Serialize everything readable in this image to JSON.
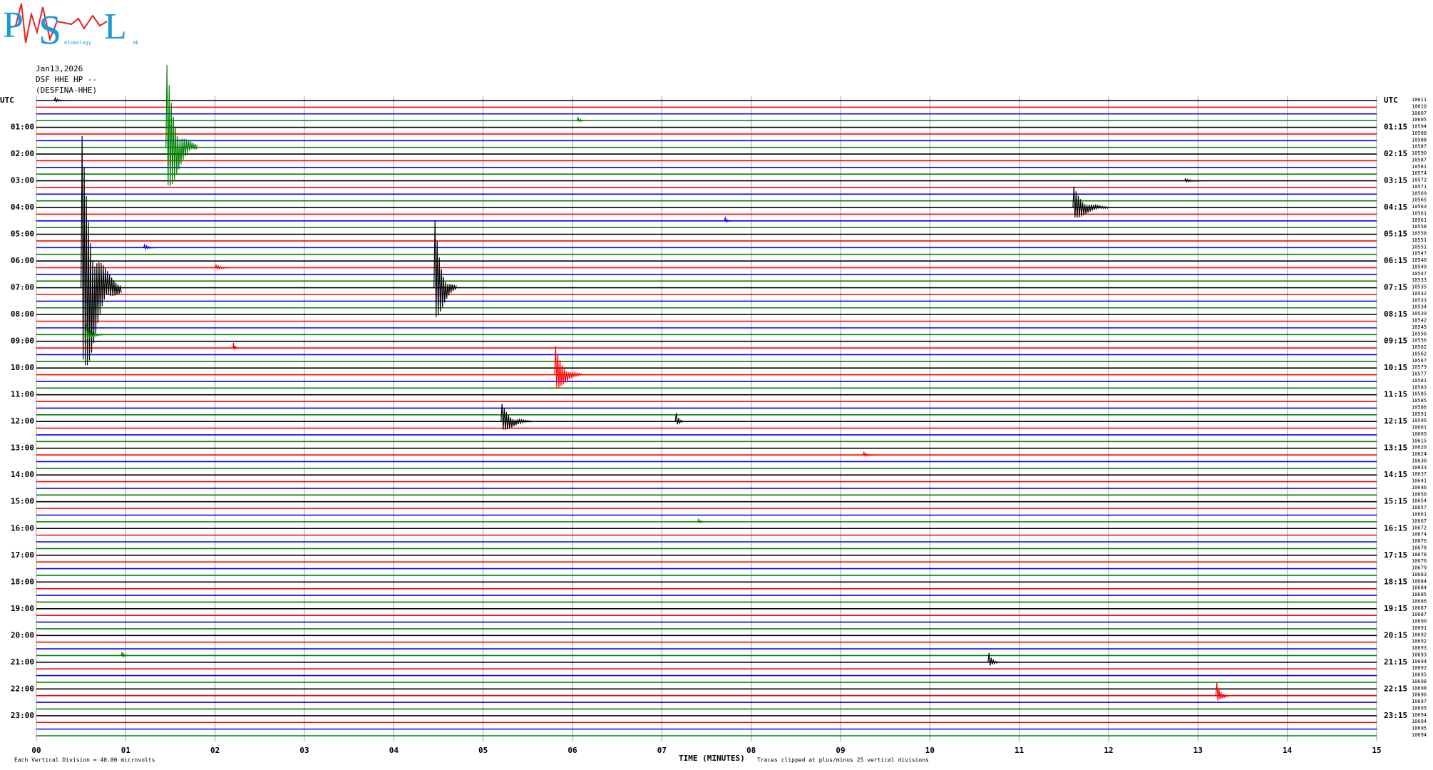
{
  "logo": {
    "first": "P",
    "second": "S",
    "third": "L",
    "small_1": "eismology",
    "small_2": "ab"
  },
  "chart_data": {
    "type": "helicorder",
    "date": "Jan13,2026",
    "station": "DSF HHE HP --",
    "station_name": "(DESFINA-HHE)",
    "scale_note": "Each Vertical Division =   40.00 microvolts",
    "x_label": "TIME (MINUTES)",
    "clip_note": "Traces clipped at plus/minus 25 vertical divisions",
    "left_labels": [
      "UTC",
      "01:00",
      "02:00",
      "03:00",
      "04:00",
      "05:00",
      "06:00",
      "07:00",
      "08:00",
      "09:00",
      "10:00",
      "11:00",
      "12:00",
      "13:00",
      "14:00",
      "15:00",
      "16:00",
      "17:00",
      "18:00",
      "19:00",
      "20:00",
      "21:00",
      "22:00",
      "23:00"
    ],
    "right_labels": [
      "UTC",
      "01:15",
      "02:15",
      "03:15",
      "04:15",
      "05:15",
      "06:15",
      "07:15",
      "08:15",
      "09:15",
      "10:15",
      "11:15",
      "12:15",
      "13:15",
      "14:15",
      "15:15",
      "16:15",
      "17:15",
      "18:15",
      "19:15",
      "20:15",
      "21:15",
      "22:15",
      "23:15"
    ],
    "row_values": [
      10611,
      10610,
      10607,
      10605,
      10594,
      10588,
      10588,
      10587,
      10590,
      10587,
      10581,
      10574,
      10572,
      10571,
      10569,
      10565,
      10563,
      10561,
      10561,
      10558,
      10558,
      10551,
      10551,
      10547,
      10540,
      10549,
      10547,
      10533,
      10535,
      10532,
      10533,
      10534,
      10539,
      10542,
      10545,
      10550,
      10556,
      10562,
      10562,
      10567,
      10579,
      10577,
      10581,
      10583,
      10585,
      10585,
      10586,
      10591,
      10595,
      10601,
      10609,
      10615,
      10620,
      10624,
      10630,
      10633,
      10637,
      10641,
      10646,
      10650,
      10654,
      10657,
      10661,
      10667,
      10672,
      10674,
      10676,
      10678,
      10678,
      10676,
      10679,
      10683,
      10684,
      10684,
      10685,
      10686,
      10687,
      10687,
      10690,
      10691,
      10692,
      10692,
      10693,
      10693,
      10694,
      10692,
      10695,
      10698,
      10698,
      10696,
      10697,
      10695,
      10694,
      10694,
      10695,
      10694
    ],
    "colors": [
      "#000000",
      "#ff0000",
      "#0000ff",
      "#008000"
    ],
    "xlim": [
      0,
      15
    ],
    "xticks": [
      {
        "value": 0,
        "label": "00"
      },
      {
        "value": 1,
        "label": "01"
      },
      {
        "value": 2,
        "label": "02"
      },
      {
        "value": 3,
        "label": "03"
      },
      {
        "value": 4,
        "label": "04"
      },
      {
        "value": 5,
        "label": "05"
      },
      {
        "value": 6,
        "label": "06"
      },
      {
        "value": 7,
        "label": "07"
      },
      {
        "value": 8,
        "label": "08"
      },
      {
        "value": 9,
        "label": "09"
      },
      10,
      11,
      12,
      13,
      14,
      15
    ],
    "events": [
      {
        "trace": 0,
        "minute": 0.2,
        "amplitude": 0.6,
        "duration": 0.12
      },
      {
        "trace": 3,
        "minute": 6.05,
        "amplitude": 0.7,
        "duration": 0.1
      },
      {
        "trace": 7,
        "minute": 1.45,
        "amplitude": 14,
        "duration": 0.35
      },
      {
        "trace": 28,
        "minute": 0.5,
        "amplitude": 25,
        "duration": 0.45
      },
      {
        "trace": 35,
        "minute": 0.55,
        "amplitude": 2,
        "duration": 0.2
      },
      {
        "trace": 28,
        "minute": 4.45,
        "amplitude": 12,
        "duration": 0.25
      },
      {
        "trace": 41,
        "minute": 5.8,
        "amplitude": 5,
        "duration": 0.3
      },
      {
        "trace": 48,
        "minute": 5.2,
        "amplitude": 3,
        "duration": 0.35
      },
      {
        "trace": 48,
        "minute": 7.15,
        "amplitude": 2,
        "duration": 0.1
      },
      {
        "trace": 16,
        "minute": 11.6,
        "amplitude": 3.5,
        "duration": 0.4
      },
      {
        "trace": 53,
        "minute": 9.25,
        "amplitude": 0.5,
        "duration": 0.15
      },
      {
        "trace": 63,
        "minute": 7.4,
        "amplitude": 0.6,
        "duration": 0.1
      },
      {
        "trace": 84,
        "minute": 10.65,
        "amplitude": 2,
        "duration": 0.12
      },
      {
        "trace": 89,
        "minute": 13.2,
        "amplitude": 2.5,
        "duration": 0.15
      },
      {
        "trace": 83,
        "minute": 0.95,
        "amplitude": 0.8,
        "duration": 0.08
      },
      {
        "trace": 18,
        "minute": 7.7,
        "amplitude": 0.7,
        "duration": 0.08
      },
      {
        "trace": 22,
        "minute": 1.2,
        "amplitude": 0.6,
        "duration": 0.15
      },
      {
        "trace": 25,
        "minute": 2.0,
        "amplitude": 0.5,
        "duration": 0.2
      },
      {
        "trace": 37,
        "minute": 2.2,
        "amplitude": 1.2,
        "duration": 0.05
      },
      {
        "trace": 12,
        "minute": 12.85,
        "amplitude": 0.4,
        "duration": 0.2
      }
    ]
  }
}
